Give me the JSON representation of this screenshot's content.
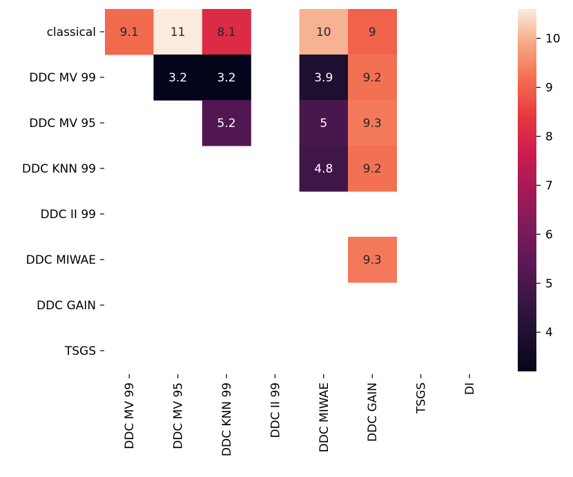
{
  "chart_data": {
    "type": "heatmap",
    "title": "",
    "xlabel": "",
    "ylabel": "",
    "row_labels": [
      "classical",
      "DDC MV 99",
      "DDC MV 95",
      "DDC KNN 99",
      "DDC II 99",
      "DDC MIWAE",
      "DDC GAIN",
      "TSGS"
    ],
    "col_labels": [
      "DDC MV 99",
      "DDC MV 95",
      "DDC KNN 99",
      "DDC II 99",
      "DDC MIWAE",
      "DDC GAIN",
      "TSGS",
      "DI"
    ],
    "values": [
      [
        9.1,
        11,
        8.1,
        null,
        10,
        9,
        null,
        null
      ],
      [
        null,
        3.2,
        3.2,
        null,
        3.9,
        9.2,
        null,
        null
      ],
      [
        null,
        null,
        5.2,
        null,
        5,
        9.3,
        null,
        null
      ],
      [
        null,
        null,
        null,
        null,
        4.8,
        9.2,
        null,
        null
      ],
      [
        null,
        null,
        null,
        null,
        null,
        null,
        null,
        null
      ],
      [
        null,
        null,
        null,
        null,
        null,
        9.3,
        null,
        null
      ],
      [
        null,
        null,
        null,
        null,
        null,
        null,
        null,
        null
      ],
      [
        null,
        null,
        null,
        null,
        null,
        null,
        null,
        null
      ]
    ],
    "cell_labels": [
      [
        "9.1",
        "11",
        "8.1",
        "",
        "10",
        "9",
        "",
        ""
      ],
      [
        "",
        "3.2",
        "3.2",
        "",
        "3.9",
        "9.2",
        "",
        ""
      ],
      [
        "",
        "",
        "5.2",
        "",
        "5",
        "9.3",
        "",
        ""
      ],
      [
        "",
        "",
        "",
        "",
        "4.8",
        "9.2",
        "",
        ""
      ],
      [
        "",
        "",
        "",
        "",
        "",
        "",
        "",
        ""
      ],
      [
        "",
        "",
        "",
        "",
        "",
        "9.3",
        "",
        ""
      ],
      [
        "",
        "",
        "",
        "",
        "",
        "",
        "",
        ""
      ],
      [
        "",
        "",
        "",
        "",
        "",
        "",
        "",
        ""
      ]
    ],
    "colormap": "rocket",
    "colorbar": {
      "range": [
        3.2,
        10.6
      ],
      "ticks": [
        4,
        5,
        6,
        7,
        8,
        9,
        10
      ],
      "tick_labels": [
        "4",
        "5",
        "6",
        "7",
        "8",
        "9",
        "10"
      ],
      "placement": "right"
    }
  }
}
